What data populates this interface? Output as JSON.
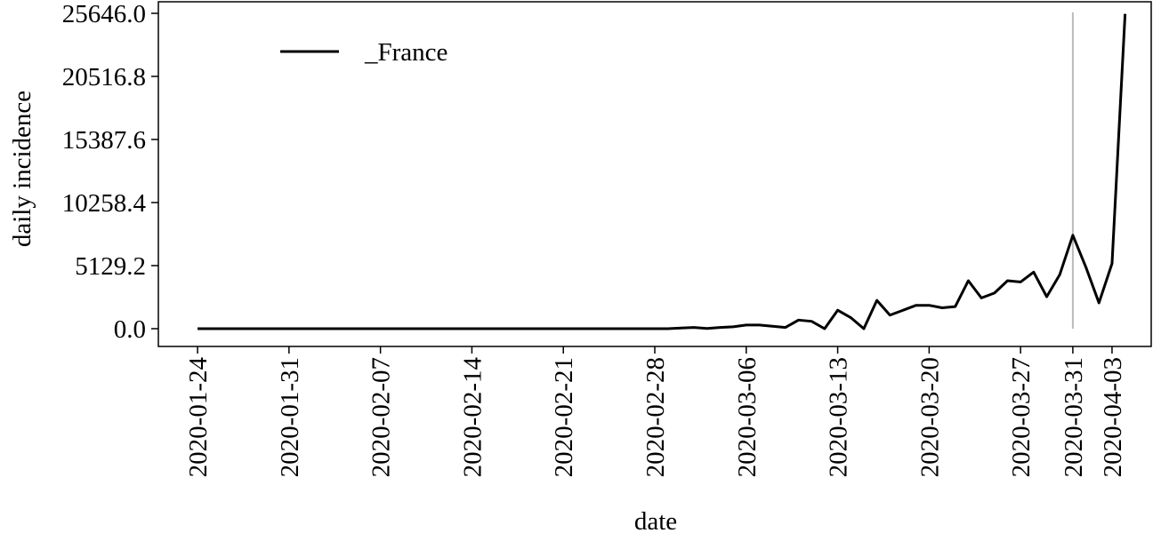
{
  "chart_data": {
    "type": "line",
    "x_label": "date",
    "y_label": "daily incidence",
    "x": [
      "2020-01-24",
      "2020-01-25",
      "2020-01-26",
      "2020-01-27",
      "2020-01-28",
      "2020-01-29",
      "2020-01-30",
      "2020-01-31",
      "2020-02-01",
      "2020-02-02",
      "2020-02-03",
      "2020-02-04",
      "2020-02-05",
      "2020-02-06",
      "2020-02-07",
      "2020-02-08",
      "2020-02-09",
      "2020-02-10",
      "2020-02-11",
      "2020-02-12",
      "2020-02-13",
      "2020-02-14",
      "2020-02-15",
      "2020-02-16",
      "2020-02-17",
      "2020-02-18",
      "2020-02-19",
      "2020-02-20",
      "2020-02-21",
      "2020-02-22",
      "2020-02-23",
      "2020-02-24",
      "2020-02-25",
      "2020-02-26",
      "2020-02-27",
      "2020-02-28",
      "2020-02-29",
      "2020-03-01",
      "2020-03-02",
      "2020-03-03",
      "2020-03-04",
      "2020-03-05",
      "2020-03-06",
      "2020-03-07",
      "2020-03-08",
      "2020-03-09",
      "2020-03-10",
      "2020-03-11",
      "2020-03-12",
      "2020-03-13",
      "2020-03-14",
      "2020-03-15",
      "2020-03-16",
      "2020-03-17",
      "2020-03-18",
      "2020-03-19",
      "2020-03-20",
      "2020-03-21",
      "2020-03-22",
      "2020-03-23",
      "2020-03-24",
      "2020-03-25",
      "2020-03-26",
      "2020-03-27",
      "2020-03-28",
      "2020-03-29",
      "2020-03-30",
      "2020-03-31",
      "2020-04-01",
      "2020-04-02",
      "2020-04-03",
      "2020-04-04"
    ],
    "series": [
      {
        "name": "_France",
        "color": "#000000",
        "values": [
          0,
          0,
          0,
          0,
          0,
          0,
          0,
          0,
          0,
          0,
          0,
          0,
          0,
          0,
          0,
          0,
          0,
          0,
          0,
          0,
          0,
          0,
          0,
          0,
          0,
          0,
          0,
          0,
          0,
          0,
          0,
          0,
          0,
          0,
          0,
          0,
          0,
          50,
          100,
          20,
          100,
          150,
          300,
          300,
          200,
          100,
          700,
          600,
          0,
          1500,
          900,
          0,
          2300,
          1100,
          1500,
          1900,
          1900,
          1700,
          1800,
          3900,
          2500,
          2900,
          3900,
          3800,
          4600,
          2600,
          4400,
          7600,
          5000,
          2100,
          5300,
          25600
        ]
      }
    ],
    "xlim": [
      "2020-01-21",
      "2020-04-06"
    ],
    "xticks": [
      "2020-01-24",
      "2020-01-31",
      "2020-02-07",
      "2020-02-14",
      "2020-02-21",
      "2020-02-28",
      "2020-03-06",
      "2020-03-13",
      "2020-03-20",
      "2020-03-27",
      "2020-03-31",
      "2020-04-03"
    ],
    "ylim": [
      -1445,
      26585
    ],
    "yticks": [
      {
        "value": 0,
        "label": "0.0"
      },
      5129.2,
      10258.4,
      15387.6,
      20516.8,
      {
        "value": 25646,
        "label": "25646.0"
      }
    ],
    "vline": {
      "x": "2020-03-31",
      "color": "#bbbbbb"
    },
    "legend": "upper left"
  }
}
